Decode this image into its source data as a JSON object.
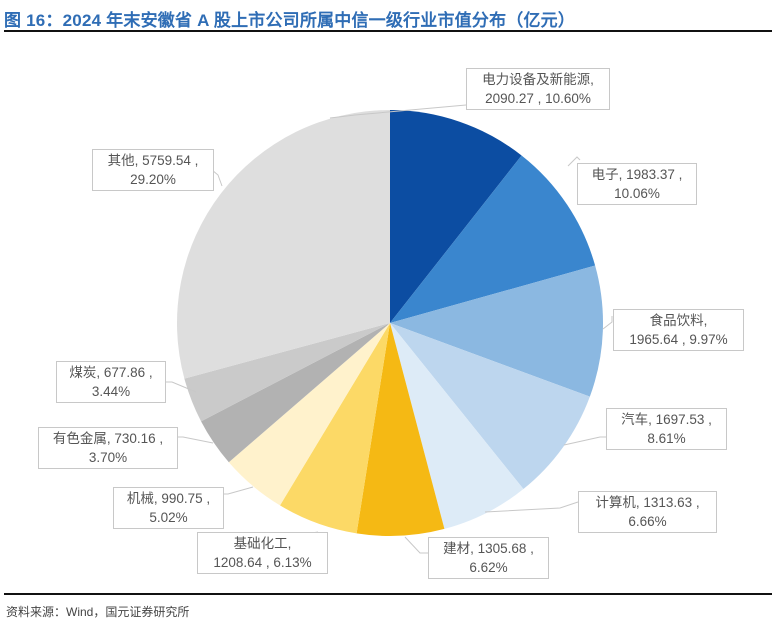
{
  "header": {
    "title": "图 16：2024 年末安徽省 A 股上市公司所属中信一级行业市值分布（亿元）"
  },
  "footer": {
    "source": "资料来源：Wind，国元证券研究所"
  },
  "chart_data": {
    "type": "pie",
    "title": "2024 年末安徽省 A 股上市公司所属中信一级行业市值分布（亿元）",
    "unit": "亿元",
    "start_angle": "12 o'clock, clockwise",
    "slices": [
      {
        "name": "电力设备及新能源",
        "value": 2090.27,
        "percent": "10.60%",
        "color": "#0C4DA2"
      },
      {
        "name": "电子",
        "value": 1983.37,
        "percent": "10.06%",
        "color": "#3A86CE"
      },
      {
        "name": "食品饮料",
        "value": 1965.64,
        "percent": "9.97%",
        "color": "#8BB8E1"
      },
      {
        "name": "汽车",
        "value": 1697.53,
        "percent": "8.61%",
        "color": "#BDD6EE"
      },
      {
        "name": "计算机",
        "value": 1313.63,
        "percent": "6.66%",
        "color": "#DDEBF7"
      },
      {
        "name": "建材",
        "value": 1305.68,
        "percent": "6.62%",
        "color": "#F5B914"
      },
      {
        "name": "基础化工",
        "value": 1208.64,
        "percent": "6.13%",
        "color": "#FCD966"
      },
      {
        "name": "机械",
        "value": 990.75,
        "percent": "5.02%",
        "color": "#FFF2CC"
      },
      {
        "name": "有色金属",
        "value": 730.16,
        "percent": "3.70%",
        "color": "#B2B2B2"
      },
      {
        "name": "煤炭",
        "value": 677.86,
        "percent": "3.44%",
        "color": "#CACACA"
      },
      {
        "name": "其他",
        "value": 5759.54,
        "percent": "29.20%",
        "color": "#DEDEDE"
      }
    ]
  },
  "labels": [
    {
      "line1": "电力设备及新能源,",
      "line2": "2090.27 , 10.60%"
    },
    {
      "line1": "电子, 1983.37 ,",
      "line2": "10.06%"
    },
    {
      "line1": "食品饮料,",
      "line2": "1965.64 , 9.97%"
    },
    {
      "line1": "汽车, 1697.53 ,",
      "line2": "8.61%"
    },
    {
      "line1": "计算机, 1313.63 ,",
      "line2": "6.66%"
    },
    {
      "line1": "建材, 1305.68 ,",
      "line2": "6.62%"
    },
    {
      "line1": "基础化工,",
      "line2": "1208.64 , 6.13%"
    },
    {
      "line1": "机械, 990.75 ,",
      "line2": "5.02%"
    },
    {
      "line1": "有色金属, 730.16 ,",
      "line2": "3.70%"
    },
    {
      "line1": "煤炭, 677.86 ,",
      "line2": "3.44%"
    },
    {
      "line1": "其他, 5759.54 ,",
      "line2": "29.20%"
    }
  ]
}
